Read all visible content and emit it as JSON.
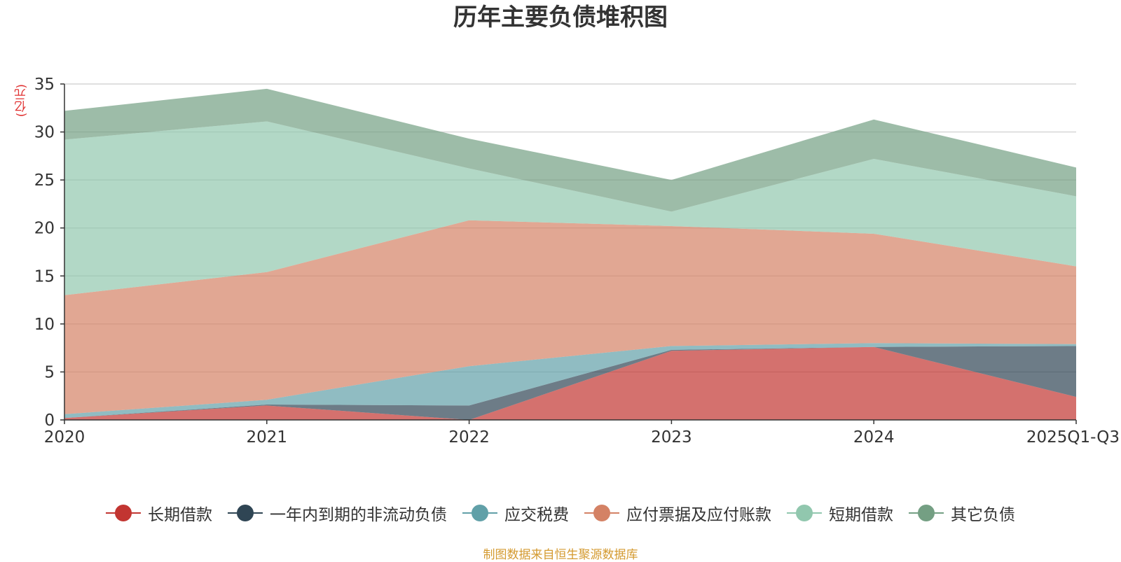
{
  "chart_data": {
    "type": "area",
    "stacked": true,
    "title": "历年主要负债堆积图",
    "unit_label": "(亿元)",
    "categories": [
      "2020",
      "2021",
      "2022",
      "2023",
      "2024",
      "2025Q1-Q3"
    ],
    "ylim": [
      0,
      35
    ],
    "yticks": [
      0,
      5,
      10,
      15,
      20,
      25,
      30,
      35
    ],
    "grid": true,
    "legend_position": "bottom",
    "series": [
      {
        "name": "长期借款",
        "color": "#c23531",
        "values": [
          0.2,
          1.5,
          0.0,
          7.2,
          7.6,
          2.4
        ]
      },
      {
        "name": "一年内到期的非流动负债",
        "color": "#2f4554",
        "values": [
          0.0,
          0.1,
          1.5,
          0.1,
          0.0,
          5.3
        ]
      },
      {
        "name": "应交税费",
        "color": "#61a0a8",
        "values": [
          0.4,
          0.5,
          4.1,
          0.4,
          0.4,
          0.2
        ]
      },
      {
        "name": "应付票据及应付账款",
        "color": "#d48265",
        "values": [
          12.4,
          13.3,
          15.2,
          12.5,
          11.4,
          8.1
        ]
      },
      {
        "name": "短期借款",
        "color": "#91c7ae",
        "values": [
          16.2,
          15.7,
          5.4,
          1.5,
          7.8,
          7.3
        ]
      },
      {
        "name": "其它负债",
        "color": "#749f83",
        "values": [
          3.0,
          3.4,
          3.1,
          3.3,
          4.1,
          3.0
        ]
      }
    ]
  },
  "source_note": "制图数据来自恒生聚源数据库"
}
